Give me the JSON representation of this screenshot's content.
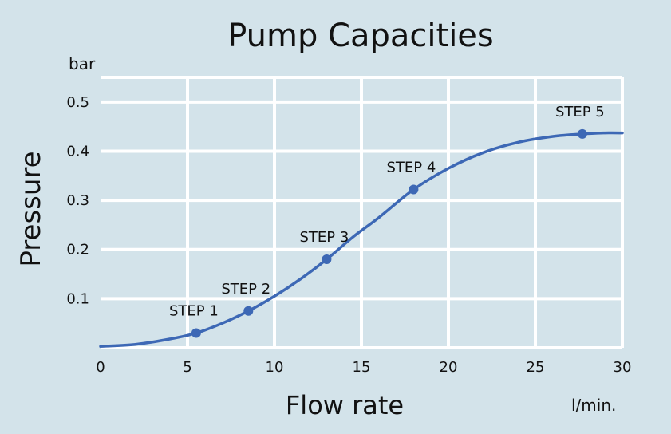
{
  "chart_data": {
    "type": "line",
    "title": "Pump Capacities",
    "xlabel": "Flow rate",
    "xunit": "l/min.",
    "ylabel": "Pressure",
    "yunit": "bar",
    "xlim": [
      0,
      30
    ],
    "ylim": [
      0,
      0.55
    ],
    "xticks": [
      0,
      5,
      10,
      15,
      20,
      25,
      30
    ],
    "yticks": [
      0.1,
      0.2,
      0.3,
      0.4,
      0.5
    ],
    "grid": true,
    "curve": {
      "x": [
        0,
        2,
        4,
        5.5,
        7,
        8.5,
        10,
        11.5,
        13,
        14.5,
        16,
        18,
        20,
        22,
        24,
        26,
        27.7,
        29,
        30
      ],
      "y": [
        0.003,
        0.007,
        0.018,
        0.03,
        0.05,
        0.075,
        0.105,
        0.14,
        0.18,
        0.225,
        0.265,
        0.322,
        0.365,
        0.397,
        0.418,
        0.43,
        0.435,
        0.437,
        0.437
      ]
    },
    "points": [
      {
        "label": "STEP 1",
        "x": 5.5,
        "y": 0.03
      },
      {
        "label": "STEP 2",
        "x": 8.5,
        "y": 0.075
      },
      {
        "label": "STEP 3",
        "x": 13,
        "y": 0.18
      },
      {
        "label": "STEP 4",
        "x": 18,
        "y": 0.322
      },
      {
        "label": "STEP 5",
        "x": 27.7,
        "y": 0.435
      }
    ],
    "colors": {
      "background": "#d3e3ea",
      "grid": "#ffffff",
      "line": "#3d68b5",
      "marker": "#3d68b5"
    }
  }
}
